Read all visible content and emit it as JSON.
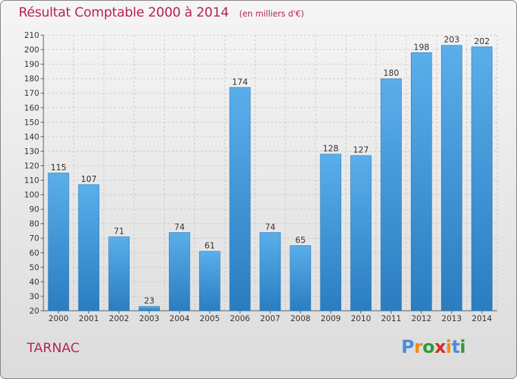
{
  "header": {
    "title": "Résultat Comptable 2000 à 2014",
    "subtitle": "(en milliers d'€)"
  },
  "footer": {
    "town": "TARNAC",
    "logo_letters": [
      "P",
      "r",
      "o",
      "x",
      "i",
      "t",
      "i"
    ],
    "logo_colors": [
      "#4a8fd6",
      "#f08a1c",
      "#2e9c3c",
      "#d22d2d",
      "#f08a1c",
      "#4a8fd6",
      "#2e9c3c"
    ]
  },
  "chart_data": {
    "type": "bar",
    "title": "Résultat Comptable 2000 à 2014",
    "subtitle": "(en milliers d'€)",
    "categories": [
      "2000",
      "2001",
      "2002",
      "2003",
      "2004",
      "2005",
      "2006",
      "2007",
      "2008",
      "2009",
      "2010",
      "2011",
      "2012",
      "2013",
      "2014"
    ],
    "values": [
      115,
      107,
      71,
      23,
      74,
      61,
      174,
      74,
      65,
      128,
      127,
      180,
      198,
      203,
      202
    ],
    "ylim": [
      20,
      210
    ],
    "yticks": [
      20,
      30,
      40,
      50,
      60,
      70,
      80,
      90,
      100,
      110,
      120,
      130,
      140,
      150,
      160,
      170,
      180,
      190,
      200,
      210
    ],
    "grid": true,
    "legend": "none",
    "bar_color": "#3d95d8"
  }
}
